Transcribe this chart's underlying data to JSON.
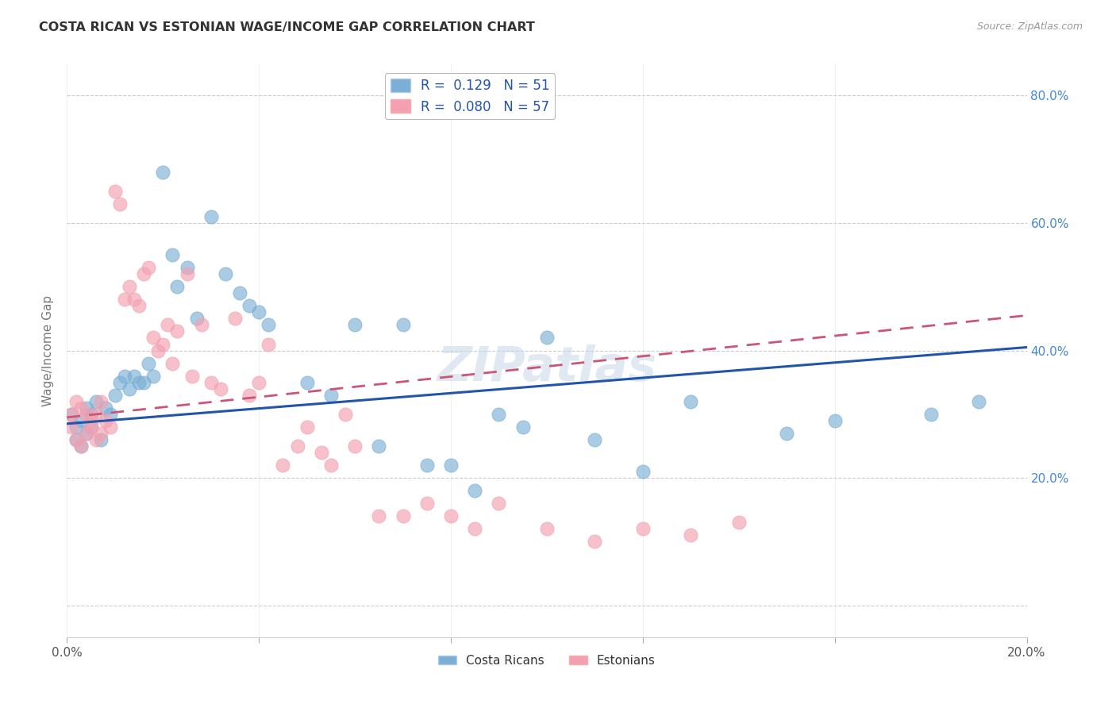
{
  "title": "COSTA RICAN VS ESTONIAN WAGE/INCOME GAP CORRELATION CHART",
  "source": "Source: ZipAtlas.com",
  "ylabel": "Wage/Income Gap",
  "xlim": [
    0.0,
    0.2
  ],
  "ylim": [
    -0.05,
    0.85
  ],
  "xticks": [
    0.0,
    0.04,
    0.08,
    0.12,
    0.16,
    0.2
  ],
  "xtick_labels": [
    "0.0%",
    "",
    "",
    "",
    "",
    "20.0%"
  ],
  "ytick_positions": [
    0.0,
    0.2,
    0.4,
    0.6,
    0.8
  ],
  "ytick_labels": [
    "",
    "20.0%",
    "40.0%",
    "60.0%",
    "80.0%"
  ],
  "blue_color": "#7BAFD4",
  "pink_color": "#F4A0B0",
  "blue_line_color": "#2255AA",
  "pink_line_color": "#CC5577",
  "watermark": "ZIPatlas",
  "legend_blue_R": "0.129",
  "legend_blue_N": "51",
  "legend_pink_R": "0.080",
  "legend_pink_N": "57",
  "blue_x": [
    0.001,
    0.002,
    0.002,
    0.003,
    0.003,
    0.004,
    0.004,
    0.005,
    0.005,
    0.006,
    0.007,
    0.008,
    0.009,
    0.01,
    0.011,
    0.012,
    0.013,
    0.014,
    0.015,
    0.016,
    0.017,
    0.018,
    0.02,
    0.022,
    0.023,
    0.025,
    0.027,
    0.03,
    0.033,
    0.036,
    0.038,
    0.04,
    0.042,
    0.05,
    0.055,
    0.06,
    0.065,
    0.07,
    0.075,
    0.08,
    0.085,
    0.09,
    0.095,
    0.1,
    0.11,
    0.12,
    0.13,
    0.15,
    0.16,
    0.18,
    0.19
  ],
  "blue_y": [
    0.3,
    0.28,
    0.26,
    0.29,
    0.25,
    0.27,
    0.31,
    0.3,
    0.28,
    0.32,
    0.26,
    0.31,
    0.3,
    0.33,
    0.35,
    0.36,
    0.34,
    0.36,
    0.35,
    0.35,
    0.38,
    0.36,
    0.68,
    0.55,
    0.5,
    0.53,
    0.45,
    0.61,
    0.52,
    0.49,
    0.47,
    0.46,
    0.44,
    0.35,
    0.33,
    0.44,
    0.25,
    0.44,
    0.22,
    0.22,
    0.18,
    0.3,
    0.28,
    0.42,
    0.26,
    0.21,
    0.32,
    0.27,
    0.29,
    0.3,
    0.32
  ],
  "pink_x": [
    0.001,
    0.001,
    0.002,
    0.002,
    0.003,
    0.003,
    0.004,
    0.004,
    0.005,
    0.005,
    0.006,
    0.006,
    0.007,
    0.007,
    0.008,
    0.009,
    0.01,
    0.011,
    0.012,
    0.013,
    0.014,
    0.015,
    0.016,
    0.017,
    0.018,
    0.019,
    0.02,
    0.021,
    0.022,
    0.023,
    0.025,
    0.026,
    0.028,
    0.03,
    0.032,
    0.035,
    0.038,
    0.04,
    0.042,
    0.045,
    0.048,
    0.05,
    0.053,
    0.055,
    0.058,
    0.06,
    0.065,
    0.07,
    0.075,
    0.08,
    0.085,
    0.09,
    0.1,
    0.11,
    0.12,
    0.13,
    0.14
  ],
  "pink_y": [
    0.3,
    0.28,
    0.32,
    0.26,
    0.31,
    0.25,
    0.27,
    0.3,
    0.29,
    0.28,
    0.26,
    0.3,
    0.32,
    0.27,
    0.29,
    0.28,
    0.65,
    0.63,
    0.48,
    0.5,
    0.48,
    0.47,
    0.52,
    0.53,
    0.42,
    0.4,
    0.41,
    0.44,
    0.38,
    0.43,
    0.52,
    0.36,
    0.44,
    0.35,
    0.34,
    0.45,
    0.33,
    0.35,
    0.41,
    0.22,
    0.25,
    0.28,
    0.24,
    0.22,
    0.3,
    0.25,
    0.14,
    0.14,
    0.16,
    0.14,
    0.12,
    0.16,
    0.12,
    0.1,
    0.12,
    0.11,
    0.13
  ]
}
